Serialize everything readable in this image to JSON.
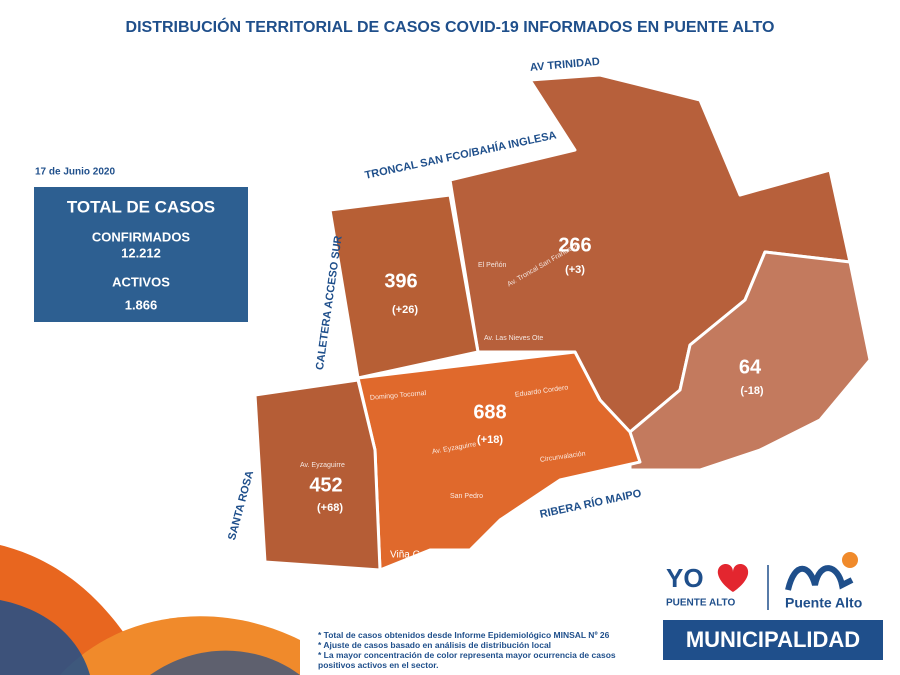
{
  "header": {
    "title": "DISTRIBUCIÓN TERRITORIAL DE CASOS COVID-19 INFORMADOS EN PUENTE ALTO"
  },
  "date": "17 de Junio 2020",
  "summary": {
    "title": "TOTAL DE CASOS",
    "confirmed_label": "CONFIRMADOS",
    "confirmed": "12.212",
    "active_label": "ACTIVOS",
    "active": "1.866"
  },
  "roads": [
    "AV TRINIDAD",
    "TRONCAL SAN FCO/BAHÍA INGLESA",
    "CALETERA ACCESO SUR",
    "SANTA ROSA",
    "RIBERA RÍO MAIPO"
  ],
  "sectors": [
    {
      "cases": "396",
      "change": "(+26)"
    },
    {
      "cases": "266",
      "change": "(+3)"
    },
    {
      "cases": "64",
      "change": "(-18)"
    },
    {
      "cases": "688",
      "change": "(+18)"
    },
    {
      "cases": "452",
      "change": "(+68)"
    }
  ],
  "streets": [
    "Domingo Tocornal",
    "Eduardo Cordero",
    "Av. Eyzaguirre",
    "Circunvalación",
    "San Pedro",
    "Viña Concha",
    "Av. Eyzaguirre",
    "El Peñón",
    "Av. Las Nieves Ote",
    "Av. Troncal San Francisco"
  ],
  "notes": [
    "* Total de casos obtenidos desde Informe Epidemiológico MINSAL Nº 26",
    "* Ajuste de casos basado en análisis de distribución local",
    "* La mayor concentración de color representa mayor ocurrencia de casos positivos activos en el sector."
  ],
  "logos": {
    "yo": "YO",
    "yo_sub": "PUENTE ALTO",
    "brand": "Puente Alto",
    "municipality": "MUNICIPALIDAD"
  }
}
